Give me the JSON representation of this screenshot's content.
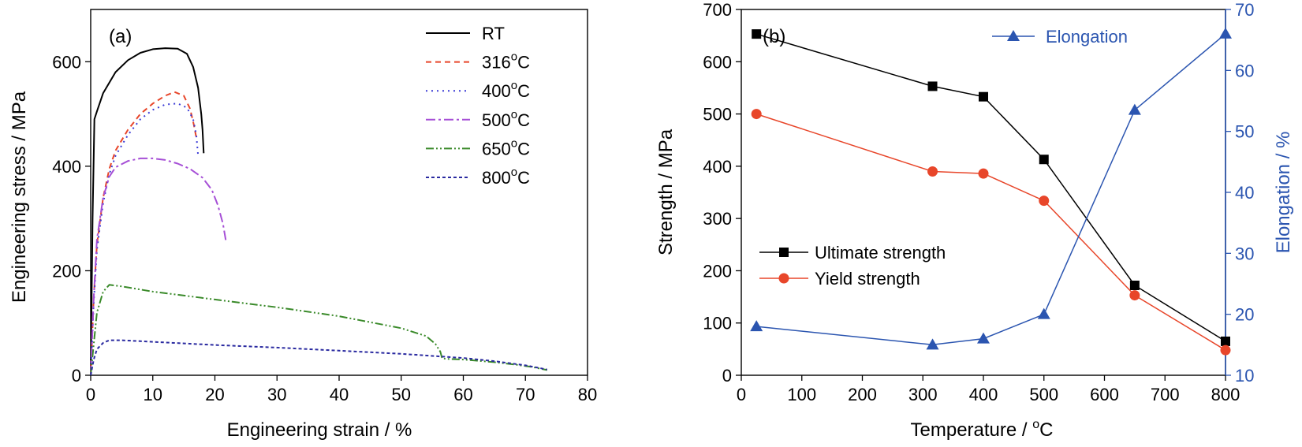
{
  "colors": {
    "black": "#000000",
    "red": "#e8462a",
    "blue_dot": "#3b3bd6",
    "purple": "#a64fd6",
    "green": "#3a8a2a",
    "navy": "#2a2aa0",
    "elong_blue": "#2b55b0"
  },
  "chart_data": [
    {
      "type": "line",
      "panel_label": "(a)",
      "xlabel": "Engineering strain / %",
      "ylabel": "Engineering stress / MPa",
      "xlim": [
        0,
        80
      ],
      "ylim": [
        0,
        700
      ],
      "xticks": [
        0,
        10,
        20,
        30,
        40,
        50,
        60,
        70,
        80
      ],
      "yticks": [
        0,
        200,
        400,
        600
      ],
      "legend_position": "top-right",
      "series": [
        {
          "name": "RT",
          "sup": "",
          "suffix": "",
          "color": "#000000",
          "dash": "",
          "points": [
            [
              0,
              0
            ],
            [
              0.3,
              300
            ],
            [
              0.6,
              490
            ],
            [
              1,
              505
            ],
            [
              2,
              540
            ],
            [
              4,
              580
            ],
            [
              6,
              603
            ],
            [
              8,
              617
            ],
            [
              10,
              624
            ],
            [
              12,
              626
            ],
            [
              14,
              625
            ],
            [
              15.5,
              615
            ],
            [
              16.5,
              590
            ],
            [
              17.3,
              550
            ],
            [
              17.8,
              500
            ],
            [
              18,
              470
            ],
            [
              18.2,
              425
            ]
          ]
        },
        {
          "name": "316",
          "sup": "o",
          "suffix": "C",
          "color": "#e8462a",
          "dash": "7,5",
          "points": [
            [
              0,
              0
            ],
            [
              0.5,
              150
            ],
            [
              1,
              250
            ],
            [
              2,
              340
            ],
            [
              3,
              395
            ],
            [
              4,
              430
            ],
            [
              6,
              470
            ],
            [
              8,
              500
            ],
            [
              10,
              520
            ],
            [
              12,
              535
            ],
            [
              13.5,
              542
            ],
            [
              15,
              535
            ],
            [
              16,
              510
            ],
            [
              16.6,
              480
            ],
            [
              17,
              455
            ]
          ]
        },
        {
          "name": "400",
          "sup": "o",
          "suffix": "C",
          "color": "#3b3bd6",
          "dash": "2,5",
          "points": [
            [
              0,
              0
            ],
            [
              0.5,
              140
            ],
            [
              1,
              240
            ],
            [
              2,
              330
            ],
            [
              3,
              385
            ],
            [
              4,
              420
            ],
            [
              6,
              460
            ],
            [
              8,
              490
            ],
            [
              10,
              508
            ],
            [
              12,
              518
            ],
            [
              14,
              520
            ],
            [
              15.5,
              512
            ],
            [
              16.5,
              490
            ],
            [
              17,
              460
            ],
            [
              17.3,
              420
            ]
          ]
        },
        {
          "name": "500",
          "sup": "o",
          "suffix": "C",
          "color": "#a64fd6",
          "dash": "12,4,3,4",
          "points": [
            [
              0,
              0
            ],
            [
              0.5,
              150
            ],
            [
              1,
              260
            ],
            [
              2,
              340
            ],
            [
              3,
              380
            ],
            [
              4,
              398
            ],
            [
              6,
              410
            ],
            [
              8,
              415
            ],
            [
              10,
              415
            ],
            [
              12,
              412
            ],
            [
              14,
              405
            ],
            [
              16,
              395
            ],
            [
              18,
              378
            ],
            [
              19.5,
              355
            ],
            [
              20.5,
              325
            ],
            [
              21.3,
              290
            ],
            [
              21.8,
              255
            ]
          ]
        },
        {
          "name": "650",
          "sup": "o",
          "suffix": "C",
          "color": "#3a8a2a",
          "dash": "10,3,2,3,2,3",
          "points": [
            [
              0,
              0
            ],
            [
              0.5,
              60
            ],
            [
              1,
              120
            ],
            [
              2,
              160
            ],
            [
              3,
              173
            ],
            [
              5,
              170
            ],
            [
              10,
              160
            ],
            [
              20,
              145
            ],
            [
              30,
              130
            ],
            [
              40,
              113
            ],
            [
              50,
              90
            ],
            [
              54,
              75
            ],
            [
              55.5,
              60
            ],
            [
              56.3,
              45
            ],
            [
              56.6,
              32
            ],
            [
              58,
              31
            ],
            [
              60,
              30
            ],
            [
              62,
              28
            ],
            [
              65,
              25
            ],
            [
              68,
              21
            ],
            [
              71,
              16
            ],
            [
              73.5,
              10
            ]
          ]
        },
        {
          "name": "800",
          "sup": "o",
          "suffix": "C",
          "color": "#2a2aa0",
          "dash": "4,3",
          "points": [
            [
              0,
              0
            ],
            [
              0.5,
              30
            ],
            [
              1,
              50
            ],
            [
              2,
              62
            ],
            [
              3,
              67
            ],
            [
              5,
              67
            ],
            [
              10,
              64
            ],
            [
              20,
              58
            ],
            [
              30,
              53
            ],
            [
              40,
              47
            ],
            [
              50,
              41
            ],
            [
              60,
              33
            ],
            [
              65,
              27
            ],
            [
              70,
              19
            ],
            [
              73.5,
              11
            ]
          ]
        }
      ]
    },
    {
      "type": "line",
      "panel_label": "(b)",
      "xlabel": "Temperature / ",
      "xlabel_sup": "o",
      "xlabel_suffix": "C",
      "ylabel": "Strength / MPa",
      "y2label": "Elongation / %",
      "xlim": [
        0,
        800
      ],
      "ylim": [
        0,
        700
      ],
      "y2lim": [
        10,
        70
      ],
      "xticks": [
        0,
        100,
        200,
        300,
        400,
        500,
        600,
        700,
        800
      ],
      "yticks": [
        0,
        100,
        200,
        300,
        400,
        500,
        600,
        700
      ],
      "y2ticks": [
        10,
        20,
        30,
        40,
        50,
        60,
        70
      ],
      "series": [
        {
          "name": "Ultimate strength",
          "axis": "left",
          "marker": "square",
          "color": "#000000",
          "x": [
            25,
            316,
            400,
            500,
            650,
            800
          ],
          "values": [
            653,
            553,
            533,
            413,
            172,
            65
          ]
        },
        {
          "name": "Yield strength",
          "axis": "left",
          "marker": "circle",
          "color": "#e8462a",
          "x": [
            25,
            316,
            400,
            500,
            650,
            800
          ],
          "values": [
            500,
            390,
            386,
            334,
            153,
            48
          ]
        },
        {
          "name": "Elongation",
          "axis": "right",
          "marker": "triangle",
          "color": "#2b55b0",
          "x": [
            25,
            316,
            400,
            500,
            650,
            800
          ],
          "values": [
            18,
            15,
            16,
            20,
            53.5,
            66
          ]
        }
      ]
    }
  ]
}
